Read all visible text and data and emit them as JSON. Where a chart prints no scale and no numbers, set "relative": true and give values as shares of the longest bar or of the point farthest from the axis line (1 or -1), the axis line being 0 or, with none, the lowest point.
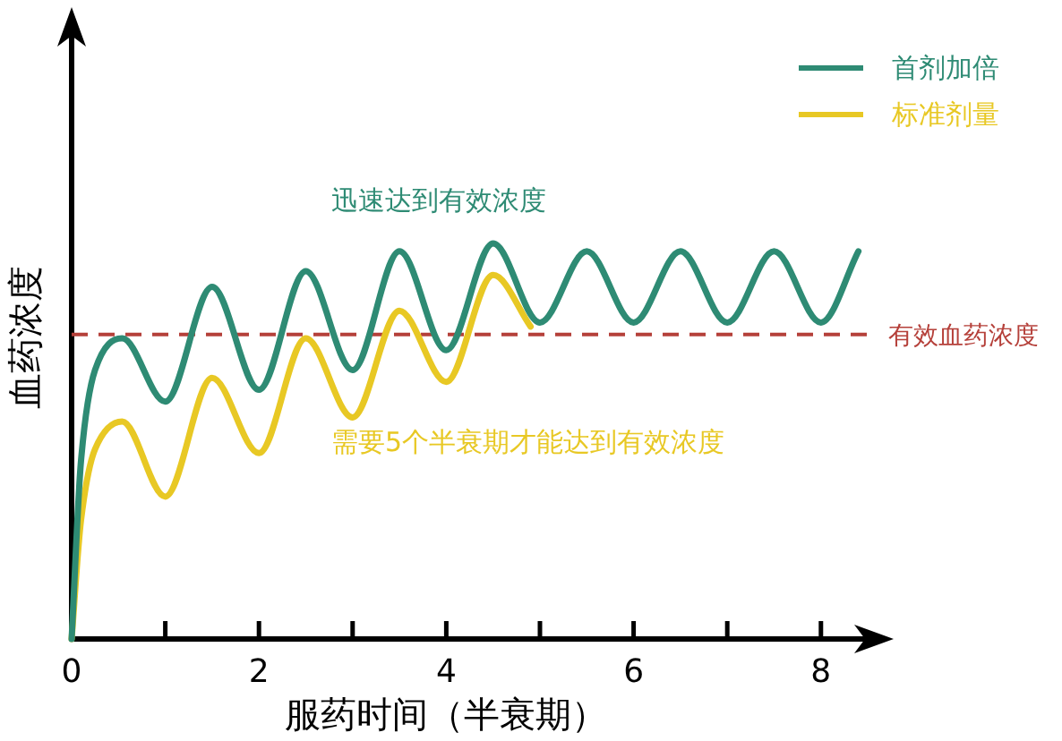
{
  "chart_data": {
    "type": "line",
    "relative": true,
    "xlabel": "服药时间（半衰期）",
    "ylabel": "血药浓度",
    "legend": "top right",
    "marker": "none",
    "line_style": "solid",
    "xlim": [
      0,
      8.7
    ],
    "xticks": [
      0,
      {
        "value": 1,
        "label": null
      },
      2,
      {
        "value": 3,
        "label": null
      },
      4,
      {
        "value": 5,
        "label": null
      },
      6,
      {
        "value": 7,
        "label": null
      },
      8
    ],
    "series": [
      {
        "name": "首剂加倍",
        "color": "#2e8b74",
        "x": [
          0,
          0.1,
          0.25,
          0.54,
          1,
          1.5,
          2,
          2.5,
          3,
          3.5,
          4,
          4.5,
          5,
          5.5,
          6,
          6.5,
          7,
          7.5,
          8,
          8.4
        ],
        "values": [
          0,
          0.45,
          0.68,
          0.76,
          0.6,
          0.89,
          0.63,
          0.93,
          0.68,
          0.98,
          0.73,
          1,
          0.8,
          0.98,
          0.8,
          0.98,
          0.8,
          0.98,
          0.8,
          0.98
        ]
      },
      {
        "name": "标准剂量",
        "color": "#e8c824",
        "x": [
          0,
          0.1,
          0.25,
          0.54,
          1,
          1.5,
          2,
          2.5,
          3,
          3.5,
          4,
          4.5,
          4.9
        ],
        "values": [
          0,
          0.3,
          0.48,
          0.55,
          0.36,
          0.66,
          0.47,
          0.76,
          0.56,
          0.83,
          0.65,
          0.92,
          0.79
        ]
      }
    ],
    "ref_lines": [
      {
        "axis": "y",
        "value": 0.77,
        "label": "有效血药浓度",
        "color": "#b5403a",
        "line_style": "dashed"
      }
    ],
    "annotations": [
      "迅速达到有效浓度",
      "需要5个半衰期才能达到有效浓度"
    ]
  }
}
